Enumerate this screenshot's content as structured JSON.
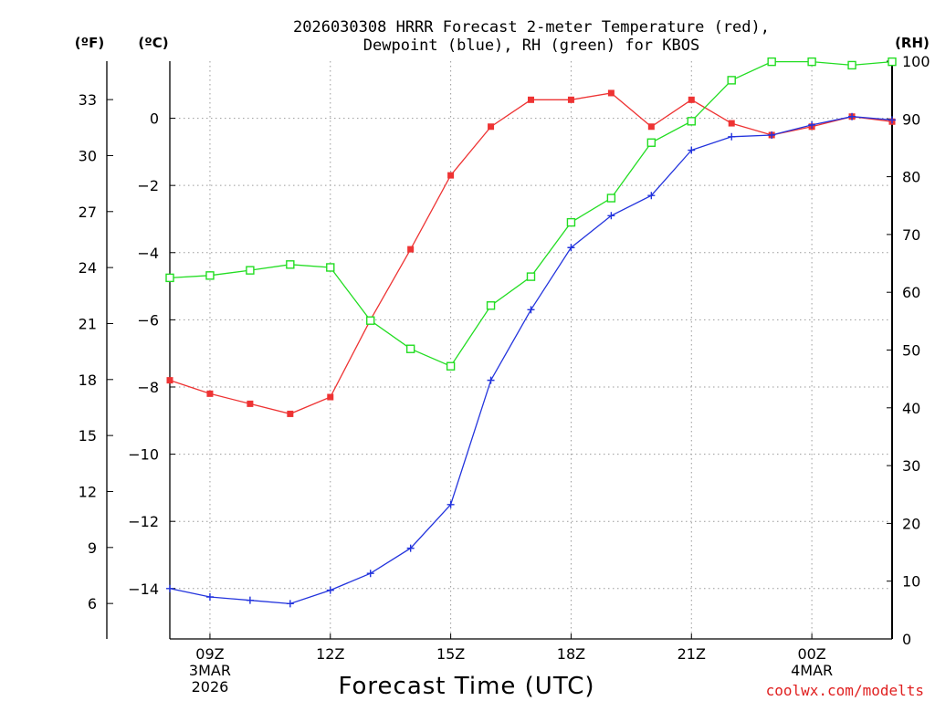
{
  "chart_data": {
    "type": "line",
    "title_lines": [
      "2026030308 HRRR Forecast 2-meter Temperature (red),",
      "Dewpoint (blue), RH (green) for KBOS"
    ],
    "xlabel": "Forecast Time (UTC)",
    "credit": "coolwx.com/modelts",
    "units": {
      "fahrenheit": "(ºF)",
      "celsius": "(ºC)",
      "rh": "(RH)"
    },
    "x_hours": [
      8,
      9,
      10,
      11,
      12,
      13,
      14,
      15,
      16,
      17,
      18,
      19,
      20,
      21,
      22,
      23,
      24,
      25,
      26
    ],
    "x_ticks": [
      {
        "hour": 9,
        "lines": [
          "09Z",
          "3MAR",
          "2026"
        ]
      },
      {
        "hour": 12,
        "lines": [
          "12Z"
        ]
      },
      {
        "hour": 15,
        "lines": [
          "15Z"
        ]
      },
      {
        "hour": 18,
        "lines": [
          "18Z"
        ]
      },
      {
        "hour": 21,
        "lines": [
          "21Z"
        ]
      },
      {
        "hour": 24,
        "lines": [
          "00Z",
          "4MAR"
        ]
      }
    ],
    "xlim": [
      8,
      26
    ],
    "celsius_lim": [
      -15.5,
      1.7
    ],
    "celsius_ticks": [
      "0",
      "−2",
      "−4",
      "−6",
      "−8",
      "−10",
      "−12",
      "−14"
    ],
    "fahrenheit_ticks": [
      "33",
      "30",
      "27",
      "24",
      "21",
      "18",
      "15",
      "12",
      "9",
      "6"
    ],
    "rh_lim": [
      0,
      100
    ],
    "rh_ticks": [
      "100",
      "90",
      "80",
      "70",
      "60",
      "50",
      "40",
      "30",
      "20",
      "10",
      "0"
    ],
    "series": [
      {
        "name": "Temperature",
        "color": "#ee3333",
        "marker": "filled-square",
        "values": [
          -7.8,
          -8.2,
          -8.5,
          -8.8,
          -8.3,
          -6.0,
          -3.9,
          -1.7,
          -0.25,
          0.55,
          0.55,
          0.75,
          -0.25,
          0.55,
          -0.15,
          -0.5,
          -0.25,
          0.05,
          -0.1
        ]
      },
      {
        "name": "Dewpoint",
        "color": "#2233dd",
        "marker": "plus",
        "values": [
          -14.0,
          -14.25,
          -14.35,
          -14.45,
          -14.05,
          -13.55,
          -12.8,
          -11.5,
          -7.8,
          -5.7,
          -3.85,
          -2.9,
          -2.3,
          -0.95,
          -0.55,
          -0.5,
          -0.2,
          0.05,
          -0.05
        ]
      },
      {
        "name": "RH",
        "color": "#22dd22",
        "marker": "open-square",
        "values": [
          62.5,
          62.9,
          63.8,
          64.8,
          64.3,
          55.1,
          50.2,
          47.2,
          57.7,
          62.7,
          72.1,
          76.3,
          85.9,
          89.6,
          96.7,
          99.9,
          99.9,
          99.3,
          99.9
        ]
      }
    ]
  }
}
